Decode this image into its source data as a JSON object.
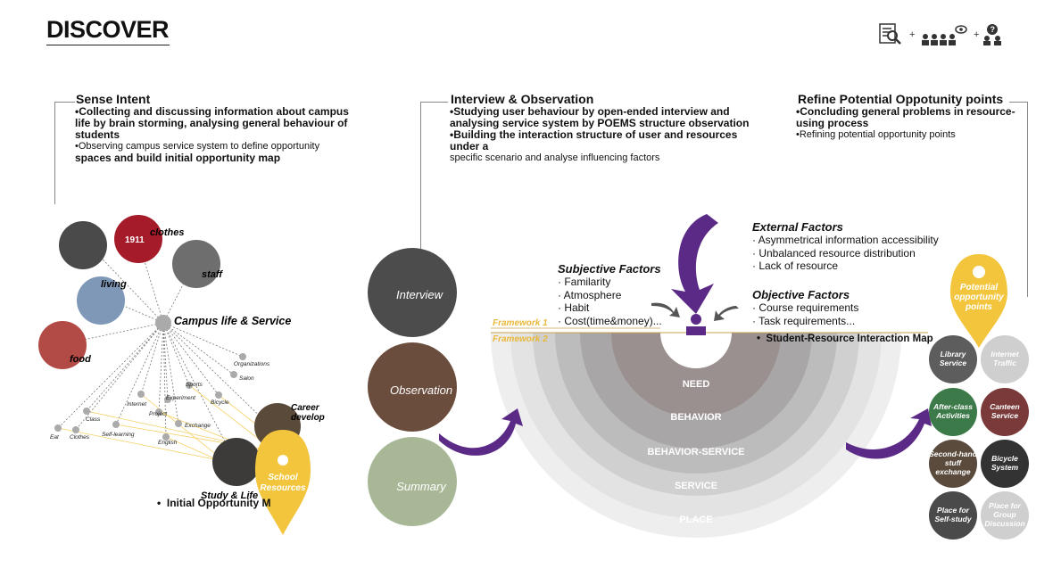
{
  "title": "DISCOVER",
  "sections": [
    {
      "heading": "Sense Intent",
      "lines": [
        "•Collecting and discussing information about campus life by brain storming, analysing general behaviour of students",
        "•Observing campus service system to define opportunity",
        "spaces and build initial opportunity map"
      ]
    },
    {
      "heading": "Interview & Observation",
      "lines": [
        "•Studying user behaviour by open-ended interview and analysing service system by POEMS structure observation",
        "•Building the interaction structure of user and resources under a",
        "specific scenario and analyse influencing factors"
      ]
    },
    {
      "heading": "Refine Potential Oppotunity points",
      "lines": [
        "•Concluding general problems in resource-using process",
        "•Refining potential opportunity points"
      ]
    }
  ],
  "mindmap": {
    "center": "Campus life & Service",
    "photo_labels": [
      "clothes",
      "staff",
      "living",
      "food",
      "Career develop",
      "Study & Life"
    ],
    "small_nodes": [
      "Organizations",
      "Salon",
      "Sports",
      "Bicycle",
      "Experiment",
      "Internet",
      "Class",
      "Project",
      "Exchange",
      "Self-learning",
      "English",
      "Eat",
      "Clothes"
    ],
    "pin_label": "School Resources",
    "caption": "Initial Opportunity M"
  },
  "methods": [
    "Interview",
    "Observation",
    "Summary"
  ],
  "subjective": {
    "title": "Subjective Factors",
    "items": [
      "· Familarity",
      "· Atmosphere",
      "· Habit",
      "· Cost(time&money)..."
    ]
  },
  "external": {
    "title": "External Factors",
    "items": [
      "· Asymmetrical information accessibility",
      "· Unbalanced resource distribution",
      "· Lack of resource"
    ]
  },
  "objective": {
    "title": "Objective Factors",
    "items": [
      "· Course requirements",
      "· Task requirements..."
    ]
  },
  "frameworks": [
    "Framework 1",
    "Framework 2"
  ],
  "interaction_map": "Student-Resource Interaction Map",
  "layers": [
    "NEED",
    "BEHAVIOR",
    "BEHAVIOR-SERVICE",
    "SERVICE",
    "PLACE"
  ],
  "potential": {
    "label": "Potential opportunity points",
    "points": [
      "Library Service",
      "Internet Traffic",
      "After-class Activities",
      "Canteen Service",
      "Second-hand stuff exchange",
      "Bicycle System",
      "Place for Self-study",
      "Place for Group Discussion"
    ]
  },
  "colors": {
    "accent_purple": "#5b2a86",
    "pin_yellow": "#f2c53d",
    "framework_yellow": "#e8b83a"
  }
}
